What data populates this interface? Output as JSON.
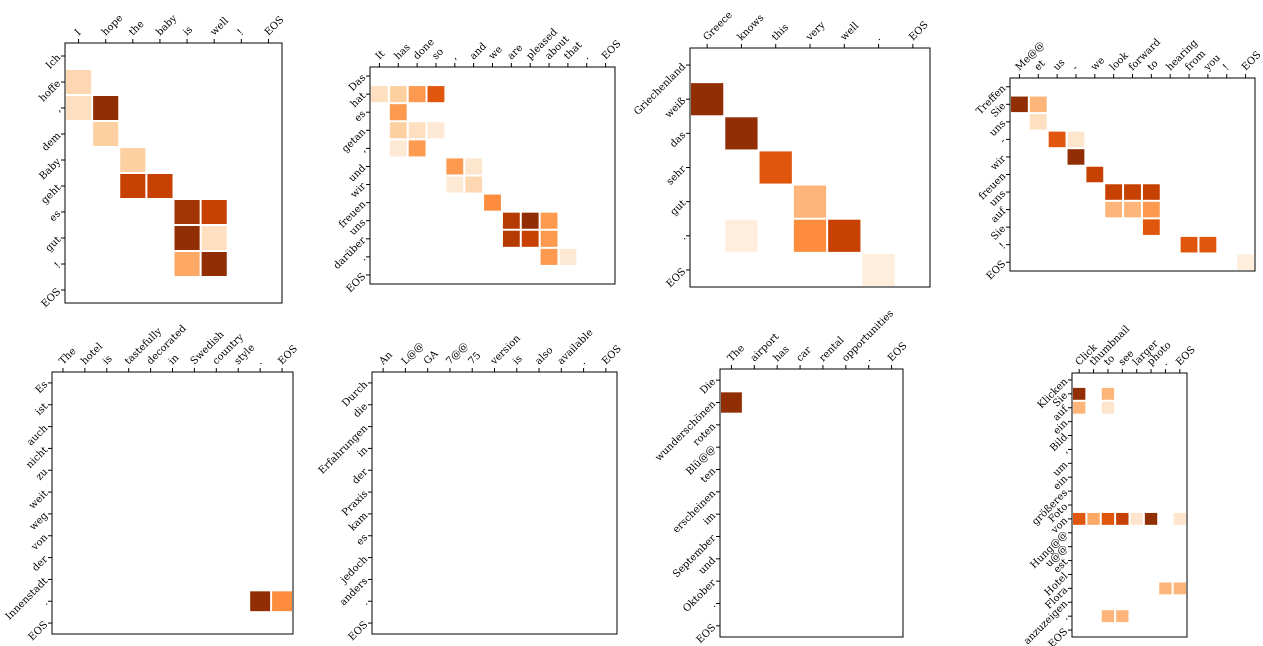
{
  "chart_data": [
    {
      "type": "heatmap",
      "x": [
        "I",
        "hope",
        "the",
        "baby",
        "is",
        "well",
        "!",
        "EOS"
      ],
      "y": [
        "Ich",
        "hoffe",
        ",",
        "dem",
        "Baby",
        "geht",
        "es",
        "gut",
        "!",
        "EOS"
      ],
      "cells": [
        [
          1,
          0,
          0.2
        ],
        [
          2,
          0,
          0.15
        ],
        [
          2,
          1,
          0.95
        ],
        [
          3,
          1,
          0.25
        ],
        [
          4,
          2,
          0.25
        ],
        [
          5,
          2,
          0.8
        ],
        [
          5,
          3,
          0.8
        ],
        [
          6,
          4,
          0.9
        ],
        [
          6,
          5,
          0.8
        ],
        [
          7,
          4,
          0.95
        ],
        [
          7,
          5,
          0.15
        ],
        [
          8,
          4,
          0.4
        ],
        [
          8,
          5,
          0.95
        ]
      ]
    },
    {
      "type": "heatmap",
      "x": [
        "It",
        "has",
        "done",
        "so",
        ",",
        "and",
        "we",
        "are",
        "pleased",
        "about",
        "that",
        ".",
        "EOS"
      ],
      "y": [
        "Das",
        "hat",
        "es",
        "getan",
        ",",
        "und",
        "wir",
        "freuen",
        "uns",
        "darüber",
        ".",
        "EOS"
      ],
      "cells": [
        [
          1,
          0,
          0.15
        ],
        [
          1,
          1,
          0.25
        ],
        [
          1,
          2,
          0.45
        ],
        [
          1,
          3,
          0.7
        ],
        [
          2,
          1,
          0.45
        ],
        [
          3,
          1,
          0.25
        ],
        [
          3,
          2,
          0.15
        ],
        [
          3,
          3,
          0.08
        ],
        [
          4,
          1,
          0.08
        ],
        [
          4,
          2,
          0.45
        ],
        [
          5,
          4,
          0.45
        ],
        [
          5,
          5,
          0.1
        ],
        [
          6,
          4,
          0.08
        ],
        [
          6,
          5,
          0.2
        ],
        [
          7,
          6,
          0.5
        ],
        [
          8,
          7,
          0.85
        ],
        [
          8,
          8,
          0.95
        ],
        [
          8,
          9,
          0.45
        ],
        [
          9,
          7,
          0.85
        ],
        [
          9,
          8,
          0.8
        ],
        [
          9,
          9,
          0.45
        ],
        [
          10,
          9,
          0.45
        ],
        [
          10,
          10,
          0.08
        ]
      ]
    },
    {
      "type": "heatmap",
      "x": [
        "Greece",
        "knows",
        "this",
        "very",
        "well",
        ".",
        "EOS"
      ],
      "y": [
        "Griechenland",
        "weiß",
        "das",
        "sehr",
        "gut",
        ".",
        "EOS"
      ],
      "cells": [
        [
          1,
          0,
          0.95
        ],
        [
          2,
          1,
          0.95
        ],
        [
          3,
          2,
          0.7
        ],
        [
          4,
          3,
          0.35
        ],
        [
          5,
          1,
          0.05
        ],
        [
          5,
          3,
          0.5
        ],
        [
          5,
          4,
          0.8
        ],
        [
          6,
          5,
          0.05
        ]
      ]
    },
    {
      "type": "heatmap",
      "x": [
        "Me@@",
        "et",
        "us",
        "-",
        "we",
        "look",
        "forward",
        "to",
        "hearing",
        "from",
        "you",
        "!",
        "EOS"
      ],
      "y": [
        "Treffen",
        "Sie",
        "uns",
        "-",
        "wir",
        "freuen",
        "uns",
        "auf",
        "Sie",
        "!",
        "EOS"
      ],
      "cells": [
        [
          1,
          0,
          0.95
        ],
        [
          1,
          1,
          0.35
        ],
        [
          2,
          1,
          0.15
        ],
        [
          3,
          2,
          0.7
        ],
        [
          3,
          3,
          0.1
        ],
        [
          4,
          3,
          0.95
        ],
        [
          5,
          4,
          0.8
        ],
        [
          6,
          5,
          0.8
        ],
        [
          6,
          6,
          0.8
        ],
        [
          6,
          7,
          0.8
        ],
        [
          7,
          5,
          0.35
        ],
        [
          7,
          6,
          0.35
        ],
        [
          7,
          7,
          0.45
        ],
        [
          8,
          7,
          0.7
        ],
        [
          9,
          9,
          0.7
        ],
        [
          9,
          10,
          0.7
        ],
        [
          10,
          12,
          0.05
        ]
      ]
    },
    {
      "type": "heatmap",
      "x": [
        "The",
        "hotel",
        "is",
        "tastefully",
        "decorated",
        "in",
        "Swedish",
        "country",
        "style",
        ".",
        "EOS"
      ],
      "y": [
        "Es",
        "ist",
        "auch",
        "nicht",
        "zu",
        "weit",
        "weg",
        "von",
        "der",
        "Innenstadt",
        ".",
        "EOS"
      ],
      "cells": [
        [
          10,
          9,
          0.95
        ],
        [
          10,
          10,
          0.5
        ]
      ]
    },
    {
      "type": "heatmap",
      "x": [
        "An",
        "L@@",
        "GA",
        "7@@",
        "75",
        "version",
        "is",
        "also",
        "available",
        ".",
        "EOS"
      ],
      "y": [
        "Durch",
        "die",
        "Erfahrungen",
        "in",
        "der",
        "Praxis",
        "kam",
        "es",
        "jedoch",
        "anders",
        ".",
        "EOS"
      ],
      "cells": []
    },
    {
      "type": "heatmap",
      "x": [
        "The",
        "airport",
        "has",
        "car",
        "rental",
        "opportunities",
        ".",
        "EOS"
      ],
      "y": [
        "Die",
        "wunderschönen",
        "roten",
        "Blü@@",
        "ten",
        "erscheinen",
        "im",
        "September",
        "und",
        "Oktober",
        ".",
        "EOS"
      ],
      "cells": [
        [
          1,
          0,
          0.95
        ]
      ]
    },
    {
      "type": "heatmap",
      "x": [
        "Click",
        "thumbnail",
        "to",
        "see",
        "larger",
        "photo",
        ".",
        "EOS"
      ],
      "y": [
        "Klicken",
        "Sie",
        "auf",
        "ein",
        "Bild",
        ",",
        "um",
        "ein",
        "größeres",
        "Foto",
        "von",
        "Hung@@",
        "u@@",
        "est",
        "Hotel",
        "Flora",
        "anzuzeigen",
        ".",
        "EOS"
      ],
      "cells": [
        [
          1,
          0,
          0.95
        ],
        [
          1,
          2,
          0.35
        ],
        [
          2,
          0,
          0.35
        ],
        [
          2,
          2,
          0.1
        ],
        [
          10,
          0,
          0.7
        ],
        [
          10,
          1,
          0.4
        ],
        [
          10,
          2,
          0.7
        ],
        [
          10,
          3,
          0.8
        ],
        [
          10,
          4,
          0.1
        ],
        [
          10,
          5,
          0.95
        ],
        [
          10,
          7,
          0.1
        ],
        [
          15,
          6,
          0.35
        ],
        [
          15,
          7,
          0.35
        ],
        [
          17,
          2,
          0.35
        ],
        [
          17,
          3,
          0.35
        ]
      ]
    }
  ]
}
